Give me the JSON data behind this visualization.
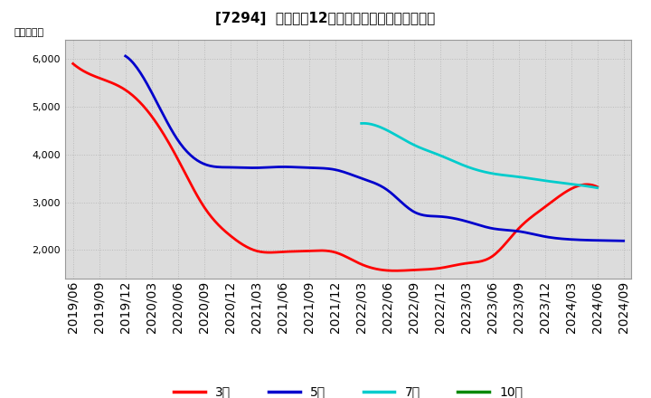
{
  "title": "[7294]  経常利益12か月移動合計の平均値の推移",
  "ylabel": "（百万円）",
  "background_color": "#ffffff",
  "grid_color": "#bbbbbb",
  "plot_bg_color": "#dcdcdc",
  "x_labels": [
    "2019/06",
    "2019/09",
    "2019/12",
    "2020/03",
    "2020/06",
    "2020/09",
    "2020/12",
    "2021/03",
    "2021/06",
    "2021/09",
    "2021/12",
    "2022/03",
    "2022/06",
    "2022/09",
    "2022/12",
    "2023/03",
    "2023/06",
    "2023/09",
    "2023/12",
    "2024/03",
    "2024/06",
    "2024/09"
  ],
  "series": {
    "3年": {
      "color": "#ff0000",
      "values": [
        5900,
        5600,
        5350,
        4800,
        3900,
        2900,
        2300,
        1980,
        1960,
        1980,
        1950,
        1700,
        1570,
        1580,
        1620,
        1720,
        1870,
        2450,
        2900,
        3280,
        3320,
        null
      ]
    },
    "5年": {
      "color": "#0000cc",
      "values": [
        null,
        null,
        6060,
        5300,
        4300,
        3800,
        3730,
        3720,
        3740,
        3720,
        3680,
        3500,
        3250,
        2800,
        2700,
        2600,
        2450,
        2390,
        2280,
        2220,
        2200,
        2190
      ]
    },
    "7年": {
      "color": "#00cccc",
      "values": [
        null,
        null,
        null,
        null,
        null,
        null,
        null,
        null,
        null,
        null,
        null,
        4650,
        4500,
        4200,
        3980,
        3750,
        3600,
        3530,
        3450,
        3380,
        3300,
        null
      ]
    },
    "10年": {
      "color": "#008800",
      "values": [
        null,
        null,
        null,
        null,
        null,
        null,
        null,
        null,
        null,
        null,
        null,
        null,
        null,
        null,
        null,
        null,
        null,
        null,
        null,
        null,
        null,
        null
      ]
    }
  },
  "ylim": [
    1400,
    6400
  ],
  "yticks": [
    2000,
    3000,
    4000,
    5000,
    6000
  ],
  "legend_labels": [
    "3年",
    "5年",
    "7年",
    "10年"
  ],
  "legend_colors": [
    "#ff0000",
    "#0000cc",
    "#00cccc",
    "#008800"
  ]
}
